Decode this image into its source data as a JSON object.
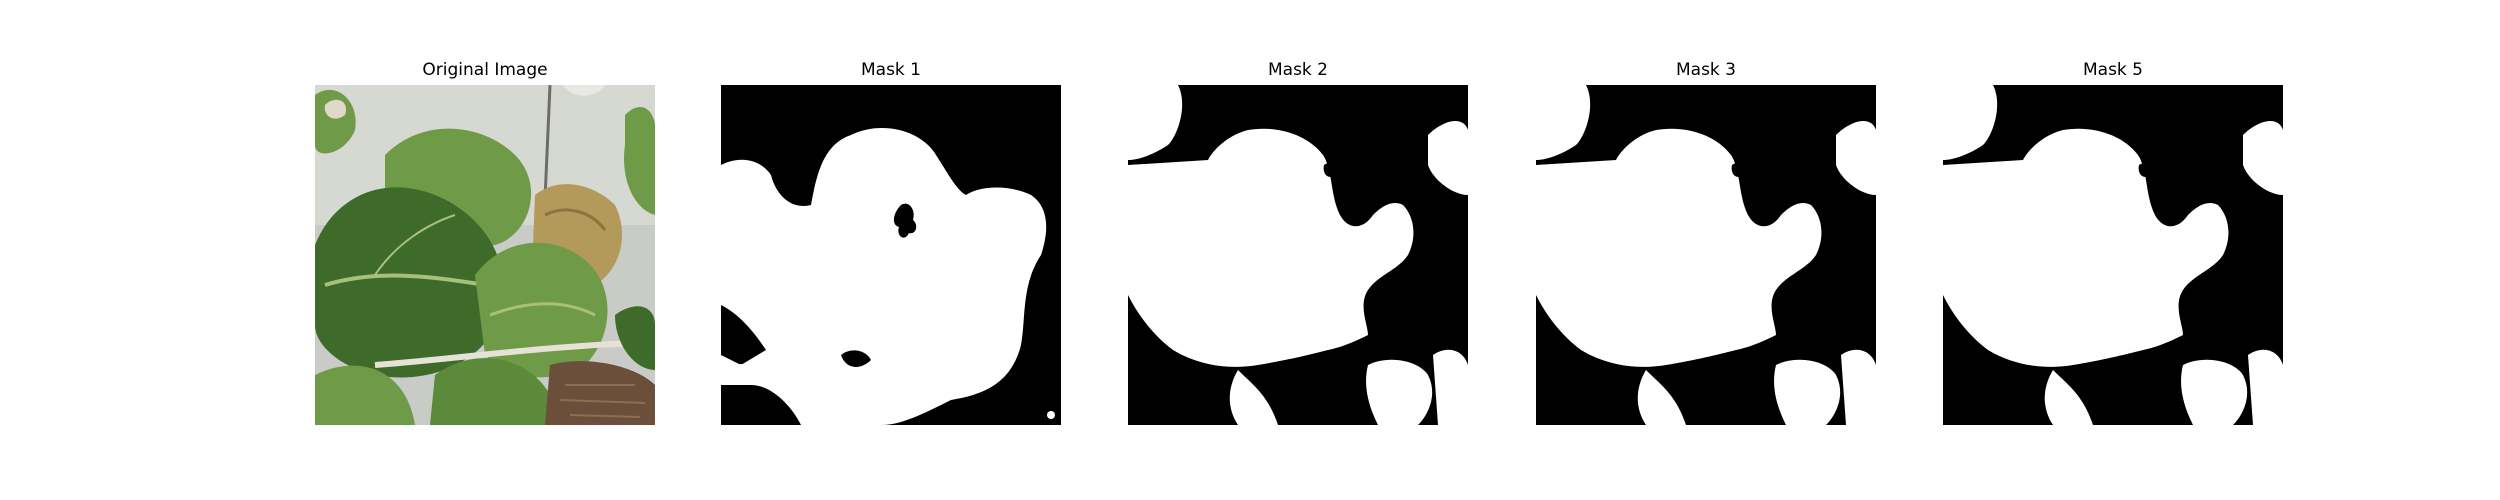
{
  "figure": {
    "panels": [
      {
        "title": "Original Image",
        "kind": "photo"
      },
      {
        "title": "Mask 1",
        "kind": "mask"
      },
      {
        "title": "Mask 2",
        "kind": "mask"
      },
      {
        "title": "Mask 3",
        "kind": "mask"
      },
      {
        "title": "Mask 5",
        "kind": "mask"
      }
    ]
  },
  "colors": {
    "mask_background": "#000000",
    "mask_foreground": "#ffffff",
    "leaf_dark": "#3f6b2a",
    "leaf_mid": "#6f9a47",
    "leaf_light": "#a9c07a",
    "wall": "#c9ccc6",
    "dry_leaf": "#b39a5a",
    "soil": "#6b4f3a"
  }
}
